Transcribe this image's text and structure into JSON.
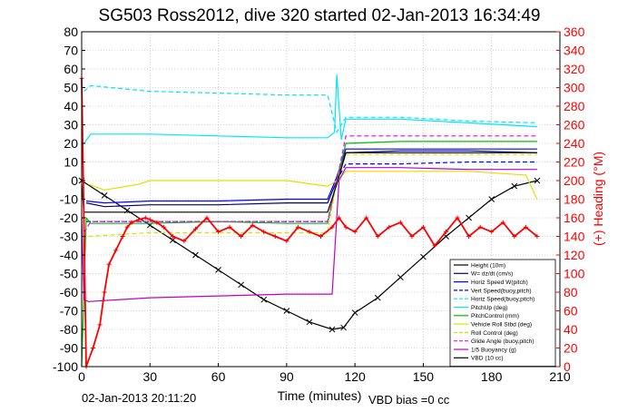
{
  "chart_data": {
    "type": "line",
    "title": "SG503 Ross2012, dive 320 started 02-Jan-2013 16:34:49",
    "xlabel": "Time (minutes)",
    "ylabel": "",
    "y2label": "(+) Heading (°M)",
    "xlim": [
      0,
      210
    ],
    "ylim": [
      -100,
      80
    ],
    "y2lim": [
      0,
      360
    ],
    "x_ticks": [
      "0",
      "30",
      "60",
      "90",
      "120",
      "150",
      "180",
      "210"
    ],
    "y_ticks": [
      "80",
      "70",
      "60",
      "50",
      "40",
      "30",
      "20",
      "10",
      "0",
      "-10",
      "-20",
      "-30",
      "-40",
      "-50",
      "-60",
      "-70",
      "-80",
      "-90",
      "-100"
    ],
    "y2_ticks": [
      "360",
      "340",
      "320",
      "300",
      "280",
      "260",
      "240",
      "220",
      "200",
      "180",
      "160",
      "140",
      "120",
      "100",
      "80",
      "60",
      "40",
      "20",
      "0"
    ],
    "grid": true,
    "legend_position": "bottom-right",
    "footer_left": "02-Jan-2013 20:11:20",
    "footer_right": "VBD bias =0 cc",
    "series": [
      {
        "name": "Height (10m)",
        "color": "#000000",
        "style": "solid-cross",
        "x": [
          0,
          10,
          20,
          30,
          40,
          50,
          60,
          70,
          80,
          90,
          100,
          110,
          115,
          120,
          130,
          140,
          150,
          160,
          170,
          180,
          190,
          200
        ],
        "y": [
          0,
          -8,
          -16,
          -24,
          -32,
          -40,
          -48,
          -56,
          -64,
          -70,
          -76,
          -80,
          -79,
          -71,
          -63,
          -52,
          -41,
          -30,
          -20,
          -10,
          -3,
          0
        ]
      },
      {
        "name": "W= dz/dt (cm/s)",
        "color": "#000080",
        "style": "solid",
        "x": [
          2,
          10,
          30,
          60,
          90,
          108,
          112,
          116,
          140,
          170,
          200
        ],
        "y": [
          -12,
          -14,
          -13,
          -13,
          -12,
          -12,
          0,
          15,
          16,
          16,
          15
        ]
      },
      {
        "name": "Horiz Speed W(pitch)",
        "color": "#0000ff",
        "style": "solid",
        "x": [
          2,
          10,
          30,
          60,
          90,
          108,
          112,
          116,
          140,
          170,
          200
        ],
        "y": [
          -11,
          -12,
          -11,
          -11,
          -10,
          -10,
          2,
          17,
          17,
          17,
          17
        ]
      },
      {
        "name": "Vert Speed(buoy,pitch)",
        "color": "#0000ff",
        "style": "dashed",
        "x": [
          2,
          10,
          30,
          60,
          90,
          108,
          112,
          116,
          140,
          170,
          200
        ],
        "y": [
          -22,
          -22,
          -22,
          -22,
          -22,
          -22,
          0,
          9,
          9,
          10,
          10
        ]
      },
      {
        "name": "Horiz Speed(buoy,pitch)",
        "color": "#00e5ff",
        "style": "dashed",
        "x": [
          1,
          4,
          30,
          60,
          90,
          108,
          112,
          116,
          140,
          170,
          200
        ],
        "y": [
          48,
          51,
          48,
          47,
          46,
          46,
          26,
          34,
          34,
          32,
          31
        ]
      },
      {
        "name": "PitchUp (deg)",
        "color": "#00e5ff",
        "style": "solid",
        "x": [
          1,
          4,
          30,
          60,
          90,
          108,
          111,
          112,
          114,
          116,
          140,
          170,
          200
        ],
        "y": [
          20,
          25,
          25,
          24,
          23,
          23,
          26,
          57,
          22,
          33,
          33,
          31,
          29
        ]
      },
      {
        "name": "PitchControl (mm)",
        "color": "#00c000",
        "style": "solid",
        "x": [
          0,
          2,
          4,
          30,
          60,
          90,
          108,
          112,
          116,
          140,
          170,
          200
        ],
        "y": [
          -100,
          -20,
          -23,
          -23,
          -22,
          -23,
          -23,
          0,
          20,
          21,
          21,
          21
        ]
      },
      {
        "name": "Vehicle Roll Stbd (deg)",
        "color": "#e0e000",
        "style": "solid",
        "x": [
          3,
          10,
          25,
          30,
          60,
          90,
          108,
          112,
          116,
          140,
          170,
          195,
          200
        ],
        "y": [
          -2,
          -5,
          -2,
          0,
          0,
          0,
          -3,
          0,
          5,
          5,
          5,
          3,
          -10
        ]
      },
      {
        "name": "Roll Control (deg)",
        "color": "#e0e000",
        "style": "dashed",
        "x": [
          3,
          30,
          60,
          90,
          108,
          112,
          116,
          140,
          170,
          200
        ],
        "y": [
          -30,
          -28,
          -28,
          -28,
          -28,
          0,
          14,
          14,
          14,
          14
        ]
      },
      {
        "name": "Glide Angle (buoy,pitch)",
        "color": "#ff00ff",
        "style": "dashed",
        "x": [
          1,
          4,
          30,
          60,
          90,
          108,
          112,
          116,
          140,
          170,
          200
        ],
        "y": [
          -28,
          -22,
          -22,
          -22,
          -22,
          -22,
          0,
          24,
          24,
          24,
          24
        ]
      },
      {
        "name": "1/5 Buoyancy (g)",
        "color": "#c000c0",
        "style": "solid",
        "x": [
          0,
          1,
          3,
          30,
          60,
          90,
          110,
          113,
          116,
          140,
          170,
          200
        ],
        "y": [
          -20,
          -64,
          -65,
          -63,
          -62,
          -61,
          -61,
          0,
          7,
          7,
          6,
          6
        ]
      },
      {
        "name": "VBD (10 cc)",
        "color": "#000000",
        "style": "solid",
        "x": [
          0,
          1,
          108,
          112,
          116,
          140,
          200
        ],
        "y": [
          -2,
          -17,
          -17,
          -2,
          15,
          15,
          15
        ]
      }
    ],
    "heading": {
      "name": "(+) Heading (°M)",
      "color": "#ff0000",
      "axis": "right",
      "x": [
        0,
        2,
        5,
        8,
        10,
        12,
        15,
        18,
        20,
        22,
        25,
        28,
        30,
        33,
        36,
        40,
        45,
        50,
        55,
        60,
        65,
        70,
        75,
        80,
        85,
        90,
        95,
        100,
        105,
        110,
        113,
        116,
        120,
        125,
        130,
        135,
        140,
        145,
        150,
        155,
        160,
        165,
        170,
        175,
        180,
        185,
        190,
        195,
        200
      ],
      "y": [
        310,
        0,
        20,
        45,
        80,
        110,
        125,
        140,
        150,
        155,
        158,
        160,
        158,
        155,
        150,
        140,
        135,
        148,
        160,
        145,
        150,
        140,
        152,
        145,
        140,
        135,
        150,
        145,
        140,
        150,
        160,
        150,
        145,
        160,
        140,
        150,
        155,
        140,
        150,
        130,
        145,
        160,
        140,
        150,
        145,
        155,
        140,
        150,
        140
      ]
    }
  }
}
